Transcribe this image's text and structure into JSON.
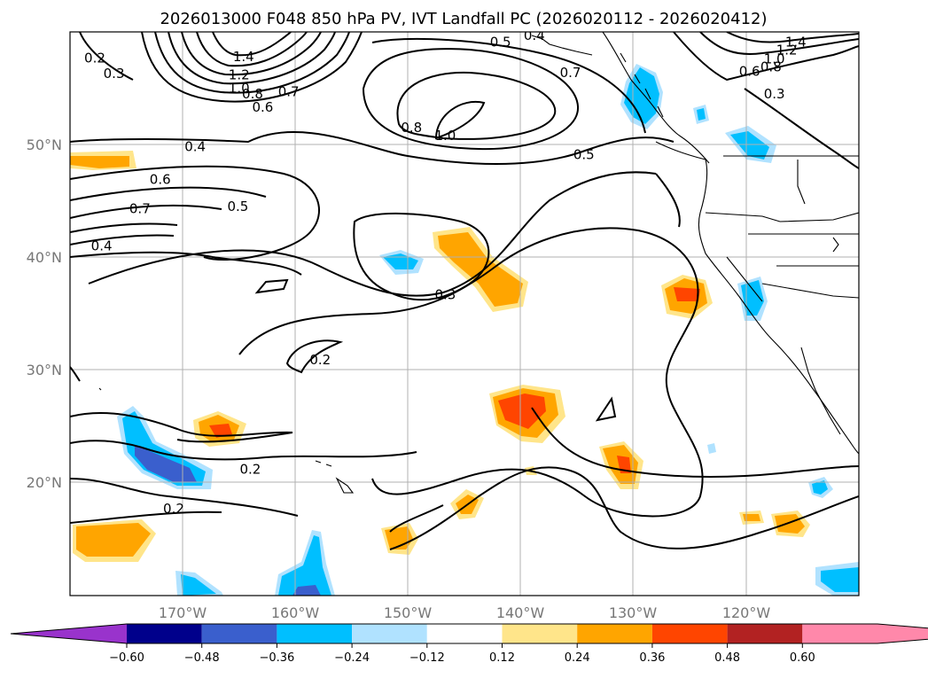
{
  "chart_data": {
    "type": "contour-map",
    "title": "2026013000 F048 850 hPa PV, IVT Landfall PC (2026020112 - 2026020412)",
    "lon_range": [
      -180,
      -110
    ],
    "lat_range": [
      10,
      60
    ],
    "lon_ticks": [
      -170,
      -160,
      -150,
      -140,
      -130,
      -120
    ],
    "lon_tick_labels": [
      "170°W",
      "160°W",
      "150°W",
      "140°W",
      "130°W",
      "120°W"
    ],
    "lat_ticks": [
      20,
      30,
      40,
      50
    ],
    "lat_tick_labels": [
      "20°N",
      "30°N",
      "40°N",
      "50°N"
    ],
    "grid": true,
    "line_field": "850 hPa PV",
    "fill_field": "IVT Landfall PC",
    "colorbar": {
      "extend": "both",
      "levels": [
        -0.72,
        -0.6,
        -0.48,
        -0.36,
        -0.24,
        -0.12,
        0.12,
        0.24,
        0.36,
        0.48,
        0.6,
        0.72
      ],
      "tick_values": [
        -0.6,
        -0.48,
        -0.36,
        -0.24,
        -0.12,
        0.12,
        0.24,
        0.36,
        0.48,
        0.6
      ],
      "tick_labels": [
        "−0.60",
        "−0.48",
        "−0.36",
        "−0.24",
        "−0.12",
        "0.12",
        "0.24",
        "0.36",
        "0.48",
        "0.60"
      ],
      "colors": [
        "#9933cc",
        "#00008b",
        "#3a5fcd",
        "#00bfff",
        "#b0e2ff",
        "#ffffff",
        "#ffe58a",
        "#ffa500",
        "#ff4500",
        "#b22222",
        "#ff88aa"
      ],
      "under_color": "#9933cc",
      "over_color": "#ff88aa"
    },
    "contour_labels": [
      {
        "text": "1.4",
        "lon": -164.6,
        "lat": 57.8
      },
      {
        "text": "1.2",
        "lon": -165.0,
        "lat": 56.2
      },
      {
        "text": "1.0",
        "lon": -165.0,
        "lat": 55.0
      },
      {
        "text": "0.8",
        "lon": -163.8,
        "lat": 54.5
      },
      {
        "text": "0.7",
        "lon": -160.6,
        "lat": 54.7
      },
      {
        "text": "0.6",
        "lon": -162.9,
        "lat": 53.3
      },
      {
        "text": "0.5",
        "lon": -141.8,
        "lat": 59.1
      },
      {
        "text": "0.4",
        "lon": -138.8,
        "lat": 59.7
      },
      {
        "text": "0.7",
        "lon": -135.6,
        "lat": 56.4
      },
      {
        "text": "0.8",
        "lon": -149.7,
        "lat": 51.5
      },
      {
        "text": "1.0",
        "lon": -146.7,
        "lat": 50.8
      },
      {
        "text": "0.5",
        "lon": -134.4,
        "lat": 49.1
      },
      {
        "text": "1.4",
        "lon": -115.6,
        "lat": 59.1
      },
      {
        "text": "1.2",
        "lon": -116.4,
        "lat": 58.4
      },
      {
        "text": "1.0",
        "lon": -117.5,
        "lat": 57.6
      },
      {
        "text": "0.8",
        "lon": -117.8,
        "lat": 56.9
      },
      {
        "text": "0.6",
        "lon": -119.7,
        "lat": 56.5
      },
      {
        "text": "0.3",
        "lon": -117.5,
        "lat": 54.5
      },
      {
        "text": "0.3",
        "lon": -176.1,
        "lat": 56.3
      },
      {
        "text": "0.2",
        "lon": -177.8,
        "lat": 57.7
      },
      {
        "text": "0.4",
        "lon": -168.9,
        "lat": 49.8
      },
      {
        "text": "0.6",
        "lon": -172.0,
        "lat": 46.9
      },
      {
        "text": "0.7",
        "lon": -173.8,
        "lat": 44.3
      },
      {
        "text": "0.5",
        "lon": -165.1,
        "lat": 44.5
      },
      {
        "text": "0.4",
        "lon": -177.2,
        "lat": 41.0
      },
      {
        "text": "0.3",
        "lon": -146.7,
        "lat": 36.7
      },
      {
        "text": "0.2",
        "lon": -157.8,
        "lat": 30.9
      },
      {
        "text": "0.2",
        "lon": -164.0,
        "lat": 21.2
      },
      {
        "text": "0.2",
        "lon": -170.8,
        "lat": 17.7
      }
    ]
  }
}
